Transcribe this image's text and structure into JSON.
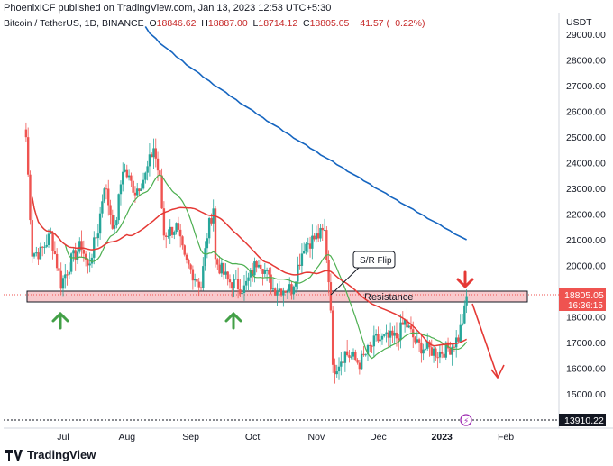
{
  "header": {
    "publisher_line": "PhoenixICF published on TradingView.com, Jan 13, 2023 12:53 UTC+5:30"
  },
  "symbol": {
    "name": "Bitcoin / TetherUS, 1D, BINANCE",
    "o_label": "O",
    "o": "18846.62",
    "h_label": "H",
    "h": "18887.00",
    "l_label": "L",
    "l": "18714.12",
    "c_label": "C",
    "c": "18805.05",
    "change": "−41.57 (−0.22%)"
  },
  "axis": {
    "currency": "USDT",
    "price_ticks": [
      "29000.00",
      "28000.00",
      "27000.00",
      "26000.00",
      "25000.00",
      "24000.00",
      "23000.00",
      "22000.00",
      "21000.00",
      "20000.00",
      "19000.00",
      "18000.00",
      "17000.00",
      "16000.00",
      "15000.00"
    ],
    "months": [
      "Jul",
      "Aug",
      "Sep",
      "Oct",
      "Nov",
      "Dec",
      "2023",
      "Feb"
    ],
    "current_price": "18805.05",
    "countdown": "16:36:15",
    "lower_value": "13910.22"
  },
  "annotations": {
    "resistance": "Resistance",
    "sr_flip": "S/R Flip"
  },
  "colors": {
    "up": "#26a69a",
    "down": "#ef5350",
    "ma_fast": "#4caf50",
    "ma_mid": "#e53935",
    "ma_slow": "#1565c0",
    "zone": "#f8c9cc",
    "arrow_green": "#43a047",
    "arrow_red": "#e53935"
  },
  "footer": {
    "brand": "TradingView"
  },
  "chart_data": {
    "type": "candlestick",
    "title": "Bitcoin / TetherUS, 1D, BINANCE",
    "ylabel": "USDT",
    "ylim": [
      14500,
      29500
    ],
    "x_range": [
      "2022-06-13",
      "2023-02-10"
    ],
    "price_series": [
      {
        "date": "2022-06-13",
        "close": 25000
      },
      {
        "date": "2022-06-16",
        "close": 20500
      },
      {
        "date": "2022-06-20",
        "close": 20500
      },
      {
        "date": "2022-06-25",
        "close": 21200
      },
      {
        "date": "2022-06-30",
        "close": 19300
      },
      {
        "date": "2022-07-05",
        "close": 20200
      },
      {
        "date": "2022-07-10",
        "close": 20800
      },
      {
        "date": "2022-07-13",
        "close": 19900
      },
      {
        "date": "2022-07-18",
        "close": 21400
      },
      {
        "date": "2022-07-21",
        "close": 23200
      },
      {
        "date": "2022-07-26",
        "close": 21300
      },
      {
        "date": "2022-07-30",
        "close": 23800
      },
      {
        "date": "2022-08-05",
        "close": 22900
      },
      {
        "date": "2022-08-10",
        "close": 23500
      },
      {
        "date": "2022-08-14",
        "close": 24600
      },
      {
        "date": "2022-08-17",
        "close": 23300
      },
      {
        "date": "2022-08-19",
        "close": 21200
      },
      {
        "date": "2022-08-25",
        "close": 21500
      },
      {
        "date": "2022-08-29",
        "close": 20200
      },
      {
        "date": "2022-09-06",
        "close": 19200
      },
      {
        "date": "2022-09-09",
        "close": 21200
      },
      {
        "date": "2022-09-12",
        "close": 22300
      },
      {
        "date": "2022-09-13",
        "close": 20200
      },
      {
        "date": "2022-09-19",
        "close": 19400
      },
      {
        "date": "2022-09-27",
        "close": 19100
      },
      {
        "date": "2022-10-04",
        "close": 20300
      },
      {
        "date": "2022-10-11",
        "close": 19100
      },
      {
        "date": "2022-10-20",
        "close": 19100
      },
      {
        "date": "2022-10-26",
        "close": 20800
      },
      {
        "date": "2022-11-05",
        "close": 21300
      },
      {
        "date": "2022-11-08",
        "close": 18500
      },
      {
        "date": "2022-11-09",
        "close": 15900
      },
      {
        "date": "2022-11-15",
        "close": 16600
      },
      {
        "date": "2022-11-22",
        "close": 16200
      },
      {
        "date": "2022-11-30",
        "close": 17100
      },
      {
        "date": "2022-12-10",
        "close": 17200
      },
      {
        "date": "2022-12-14",
        "close": 17800
      },
      {
        "date": "2022-12-20",
        "close": 16900
      },
      {
        "date": "2022-12-30",
        "close": 16600
      },
      {
        "date": "2023-01-05",
        "close": 16800
      },
      {
        "date": "2023-01-09",
        "close": 17200
      },
      {
        "date": "2023-01-12",
        "close": 18200
      },
      {
        "date": "2023-01-13",
        "close": 18805.05
      }
    ],
    "ohlc_last": {
      "open": 18846.62,
      "high": 18887.0,
      "low": 18714.12,
      "close": 18805.05
    },
    "moving_averages": [
      {
        "values_at_end": 17000
      },
      {
        "values_at_end": 17400
      },
      {
        "values_at_end": 21000
      }
    ],
    "resistance_zone": [
      18630,
      19050
    ],
    "current_price": 18805.05,
    "lower_marker": 13910.22
  }
}
